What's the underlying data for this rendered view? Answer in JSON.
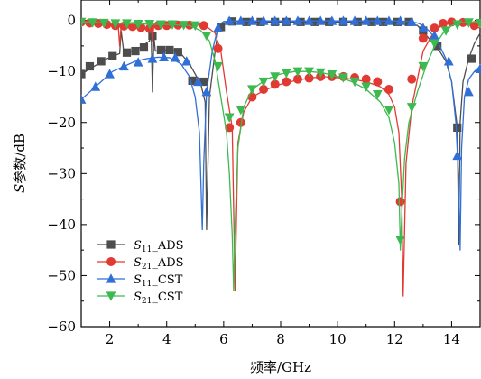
{
  "chart_data": {
    "type": "line",
    "xlabel": "频率/GHz",
    "ylabel_italic": "S",
    "ylabel_rest": "参数/dB",
    "xlim": [
      1,
      15
    ],
    "ylim": [
      -60,
      4
    ],
    "xticks": [
      2,
      4,
      6,
      8,
      10,
      12,
      14
    ],
    "xtick_labels": [
      "2",
      "4",
      "6",
      "8",
      "10",
      "12",
      "14"
    ],
    "yticks": [
      0,
      -10,
      -20,
      -30,
      -40,
      -50,
      -60
    ],
    "ytick_labels": [
      "0",
      "−10",
      "−20",
      "−30",
      "−40",
      "−50",
      "−60"
    ],
    "grid": false,
    "legend_position": "bottom-left",
    "series": [
      {
        "name": "S11_ADS",
        "label_main": "S",
        "label_sub": "11",
        "label_suffix": "_ADS",
        "color": "#4d4d4d",
        "marker": "square",
        "x": [
          1,
          1.3,
          1.6,
          1.9,
          2.2,
          2.35,
          2.4,
          2.5,
          2.8,
          3.1,
          3.4,
          3.45,
          3.5,
          3.55,
          3.6,
          3.9,
          4.2,
          4.5,
          4.8,
          5.0,
          5.2,
          5.35,
          5.4,
          5.5,
          5.7,
          5.8,
          6.0,
          6.3,
          7,
          8,
          9,
          10,
          11,
          12,
          12.5,
          12.8,
          13.0,
          13.2,
          13.4,
          13.6,
          13.8,
          14.0,
          14.2,
          14.25,
          14.3,
          14.4,
          14.6,
          14.8,
          15
        ],
        "y": [
          -10.5,
          -9.5,
          -8.5,
          -7.5,
          -6.8,
          -6.5,
          -2.0,
          -6.5,
          -6.0,
          -5.2,
          -4.0,
          -1.0,
          -14.0,
          -3.0,
          -6.0,
          -5.8,
          -5.8,
          -6.5,
          -8.5,
          -10.5,
          -12.5,
          -16.0,
          -41.0,
          -15.0,
          -6.0,
          -2.0,
          -0.5,
          -0.2,
          -0.3,
          -0.3,
          -0.3,
          -0.3,
          -0.3,
          -0.3,
          -0.5,
          -1.0,
          -2.2,
          -3.5,
          -4.8,
          -6.2,
          -8.0,
          -12.0,
          -21.0,
          -44.0,
          -20.0,
          -12.0,
          -7.5,
          -4.5,
          -2.5
        ],
        "markers_x": [
          1.0,
          1.3,
          1.7,
          2.1,
          2.6,
          2.9,
          3.2,
          3.5,
          3.8,
          4.1,
          4.4,
          4.9,
          5.3,
          5.9,
          6.3,
          6.8,
          7.3,
          7.8,
          8.2,
          8.7,
          9.2,
          9.7,
          10.2,
          10.7,
          11.2,
          11.6,
          12.1,
          12.5,
          13.0,
          13.5,
          14.2,
          14.7
        ],
        "markers_y": [
          -10.5,
          -9.0,
          -8.0,
          -7.0,
          -6.3,
          -6.0,
          -5.3,
          -3.0,
          -5.8,
          -5.8,
          -6.2,
          -11.8,
          -12.0,
          -1.3,
          -0.2,
          -0.3,
          -0.3,
          -0.3,
          -0.3,
          -0.3,
          -0.3,
          -0.3,
          -0.3,
          -0.3,
          -0.3,
          -0.3,
          -0.3,
          -0.3,
          -2.0,
          -5.0,
          -21.0,
          -7.5
        ]
      },
      {
        "name": "S21_ADS",
        "label_main": "S",
        "label_sub": "21",
        "label_suffix": "_ADS",
        "color": "#e03a32",
        "marker": "circle",
        "x": [
          1,
          1.5,
          2.0,
          2.3,
          2.35,
          2.4,
          2.8,
          3.3,
          3.45,
          3.5,
          3.55,
          3.8,
          4.4,
          5.0,
          5.4,
          5.7,
          5.9,
          6.1,
          6.3,
          6.4,
          6.5,
          6.7,
          7.0,
          7.5,
          8,
          8.5,
          9,
          9.5,
          10,
          10.5,
          11,
          11.5,
          11.8,
          12.0,
          12.15,
          12.25,
          12.3,
          12.4,
          12.6,
          12.8,
          13.0,
          13.3,
          13.6,
          14.0,
          14.3,
          14.6,
          15
        ],
        "y": [
          -0.3,
          -0.5,
          -0.8,
          -1.0,
          -5.0,
          -1.0,
          -1.2,
          -1.5,
          -0.5,
          -4.0,
          -0.8,
          -1.0,
          -0.8,
          -0.8,
          -1.2,
          -2.5,
          -6.0,
          -14.0,
          -21.0,
          -53.0,
          -24.0,
          -18.0,
          -15.0,
          -13.5,
          -12.5,
          -11.8,
          -11.3,
          -11.0,
          -11.2,
          -11.5,
          -12.0,
          -13.0,
          -14.5,
          -17.0,
          -22.0,
          -35.0,
          -54.0,
          -28.0,
          -17.0,
          -11.5,
          -6.0,
          -3.0,
          -1.2,
          -0.3,
          -0.3,
          -0.8,
          -1.5
        ],
        "markers_x": [
          1.0,
          1.3,
          1.6,
          1.9,
          2.2,
          2.5,
          2.8,
          3.1,
          3.4,
          3.7,
          4.0,
          4.4,
          4.8,
          5.3,
          5.8,
          6.2,
          6.6,
          7.0,
          7.4,
          7.8,
          8.2,
          8.6,
          9.0,
          9.4,
          9.8,
          10.2,
          10.6,
          11.0,
          11.4,
          11.8,
          12.2,
          12.6,
          13.0,
          13.4,
          13.7,
          14.0,
          14.4,
          14.8
        ],
        "markers_y": [
          -0.3,
          -0.5,
          -0.6,
          -0.8,
          -1.0,
          -1.1,
          -1.2,
          -1.4,
          -1.6,
          -1.0,
          -1.0,
          -0.9,
          -0.9,
          -1.0,
          -5.5,
          -21.0,
          -20.0,
          -15.0,
          -13.5,
          -12.5,
          -12.0,
          -11.5,
          -11.3,
          -11.0,
          -11.0,
          -11.0,
          -11.2,
          -11.5,
          -12.0,
          -13.5,
          -35.5,
          -11.5,
          -3.5,
          -1.5,
          -0.6,
          -0.3,
          -0.4,
          -1.0
        ]
      },
      {
        "name": "S11_CST",
        "label_main": "S",
        "label_sub": "11",
        "label_suffix": "_CST",
        "color": "#2f6fd6",
        "marker": "triangle-up",
        "x": [
          1,
          1.3,
          1.7,
          2.1,
          2.5,
          2.9,
          3.3,
          3.7,
          4.1,
          4.5,
          4.8,
          5.0,
          5.15,
          5.25,
          5.3,
          5.4,
          5.6,
          5.75,
          5.85,
          6.0,
          6.5,
          7,
          8,
          9,
          10,
          11,
          12,
          12.5,
          12.8,
          13.0,
          13.2,
          13.5,
          13.8,
          14.0,
          14.15,
          14.25,
          14.3,
          14.35,
          14.45,
          14.6,
          14.8,
          15
        ],
        "y": [
          -15.5,
          -14.0,
          -12.0,
          -10.0,
          -9.0,
          -8.0,
          -7.5,
          -7.2,
          -7.3,
          -8.5,
          -11.0,
          -15.0,
          -22.0,
          -41.0,
          -28.0,
          -14.0,
          -6.0,
          -2.5,
          -0.8,
          -0.2,
          -0.1,
          -0.1,
          -0.1,
          -0.1,
          -0.1,
          -0.1,
          -0.1,
          -0.2,
          -0.5,
          -1.0,
          -2.0,
          -4.0,
          -7.5,
          -12.0,
          -20.0,
          -32.0,
          -45.0,
          -25.0,
          -15.0,
          -11.5,
          -10.0,
          -9.0
        ],
        "markers_x": [
          1.0,
          1.5,
          2.0,
          2.5,
          3.0,
          3.5,
          3.9,
          4.3,
          4.7,
          5.1,
          5.4,
          5.8,
          6.2,
          6.6,
          7.0,
          7.4,
          7.8,
          8.2,
          8.6,
          9.0,
          9.4,
          9.8,
          10.2,
          10.6,
          11.0,
          11.4,
          11.8,
          12.2,
          12.6,
          13.0,
          13.4,
          13.9,
          14.2,
          14.6,
          15.0
        ],
        "markers_y": [
          -15.5,
          -13.0,
          -10.5,
          -9.0,
          -8.2,
          -7.5,
          -7.2,
          -7.3,
          -8.0,
          -12.0,
          -14.0,
          -1.5,
          -0.1,
          -0.1,
          -0.1,
          -0.1,
          -0.1,
          -0.1,
          -0.1,
          -0.1,
          -0.1,
          -0.1,
          -0.1,
          -0.1,
          -0.1,
          -0.1,
          -0.1,
          -0.1,
          -0.3,
          -1.5,
          -3.0,
          -8.0,
          -26.5,
          -14.0,
          -9.5
        ]
      },
      {
        "name": "S21_CST",
        "label_main": "S",
        "label_sub": "21",
        "label_suffix": "_CST",
        "color": "#3dba4f",
        "marker": "triangle-down",
        "x": [
          1,
          2,
          3,
          4,
          4.8,
          5.2,
          5.5,
          5.7,
          5.9,
          6.1,
          6.2,
          6.3,
          6.35,
          6.4,
          6.5,
          6.7,
          7.0,
          7.5,
          8,
          8.5,
          9,
          9.5,
          10,
          10.5,
          11,
          11.5,
          11.8,
          12.0,
          12.15,
          12.2,
          12.25,
          12.35,
          12.5,
          12.8,
          13.1,
          13.4,
          13.7,
          14.0,
          14.3,
          14.6,
          15
        ],
        "y": [
          -0.3,
          -0.5,
          -0.7,
          -0.8,
          -1.0,
          -2.0,
          -4.0,
          -8.0,
          -15.0,
          -22.0,
          -30.0,
          -42.0,
          -53.0,
          -40.0,
          -25.0,
          -17.0,
          -13.5,
          -11.5,
          -10.5,
          -10.0,
          -10.0,
          -10.3,
          -11.0,
          -12.0,
          -13.5,
          -16.0,
          -19.0,
          -24.0,
          -32.0,
          -45.0,
          -38.0,
          -27.0,
          -20.0,
          -14.0,
          -9.0,
          -5.0,
          -2.5,
          -1.0,
          -0.5,
          -0.3,
          -0.5
        ],
        "markers_x": [
          1.0,
          1.4,
          1.8,
          2.2,
          2.6,
          3.0,
          3.4,
          3.8,
          4.2,
          4.6,
          5.0,
          5.4,
          5.8,
          6.2,
          6.6,
          7.0,
          7.4,
          7.8,
          8.2,
          8.6,
          9.0,
          9.4,
          9.8,
          10.2,
          10.6,
          11.0,
          11.4,
          11.8,
          12.2,
          12.6,
          13.0,
          13.4,
          13.8,
          14.2,
          14.6,
          15.0
        ],
        "markers_y": [
          -0.3,
          -0.4,
          -0.5,
          -0.6,
          -0.6,
          -0.7,
          -0.7,
          -0.8,
          -0.8,
          -0.9,
          -1.0,
          -3.0,
          -9.0,
          -19.0,
          -17.5,
          -13.5,
          -12.0,
          -11.0,
          -10.3,
          -10.0,
          -10.0,
          -10.2,
          -10.6,
          -11.2,
          -12.0,
          -13.0,
          -14.5,
          -17.5,
          -43.0,
          -17.0,
          -9.0,
          -4.5,
          -2.0,
          -0.8,
          -0.4,
          -0.5
        ]
      }
    ]
  }
}
